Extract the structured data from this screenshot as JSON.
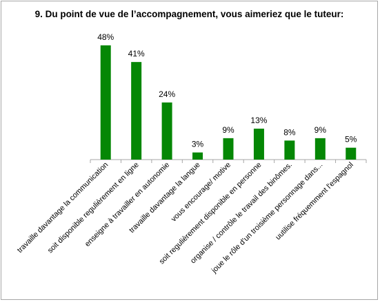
{
  "chart_data": {
    "type": "bar",
    "title": "9. Du point de vue de l’accompagnement, vous aimeriez que le tuteur:",
    "xlabel": "",
    "ylabel": "",
    "ylim": [
      0,
      50
    ],
    "grid": false,
    "legend": "none",
    "bar_color": "#058705",
    "categories": [
      "travaille davantage la communication",
      "soit disponible regulièrement en ligne",
      "enseigne à travailler en autonomie",
      "travaille davantage la langue",
      "vous encourage/ motive",
      "soit regulièrement disponible en personne",
      "organise / contrôle le travail des binômes.",
      "joue le rôle d'un troisième personnage dans...",
      "uutilise fréquemment l'espagnol"
    ],
    "values": [
      48,
      41,
      24,
      3,
      9,
      13,
      8,
      9,
      5
    ],
    "data_labels": [
      "48%",
      "41%",
      "24%",
      "3%",
      "9%",
      "13%",
      "8%",
      "9%",
      "5%"
    ]
  }
}
